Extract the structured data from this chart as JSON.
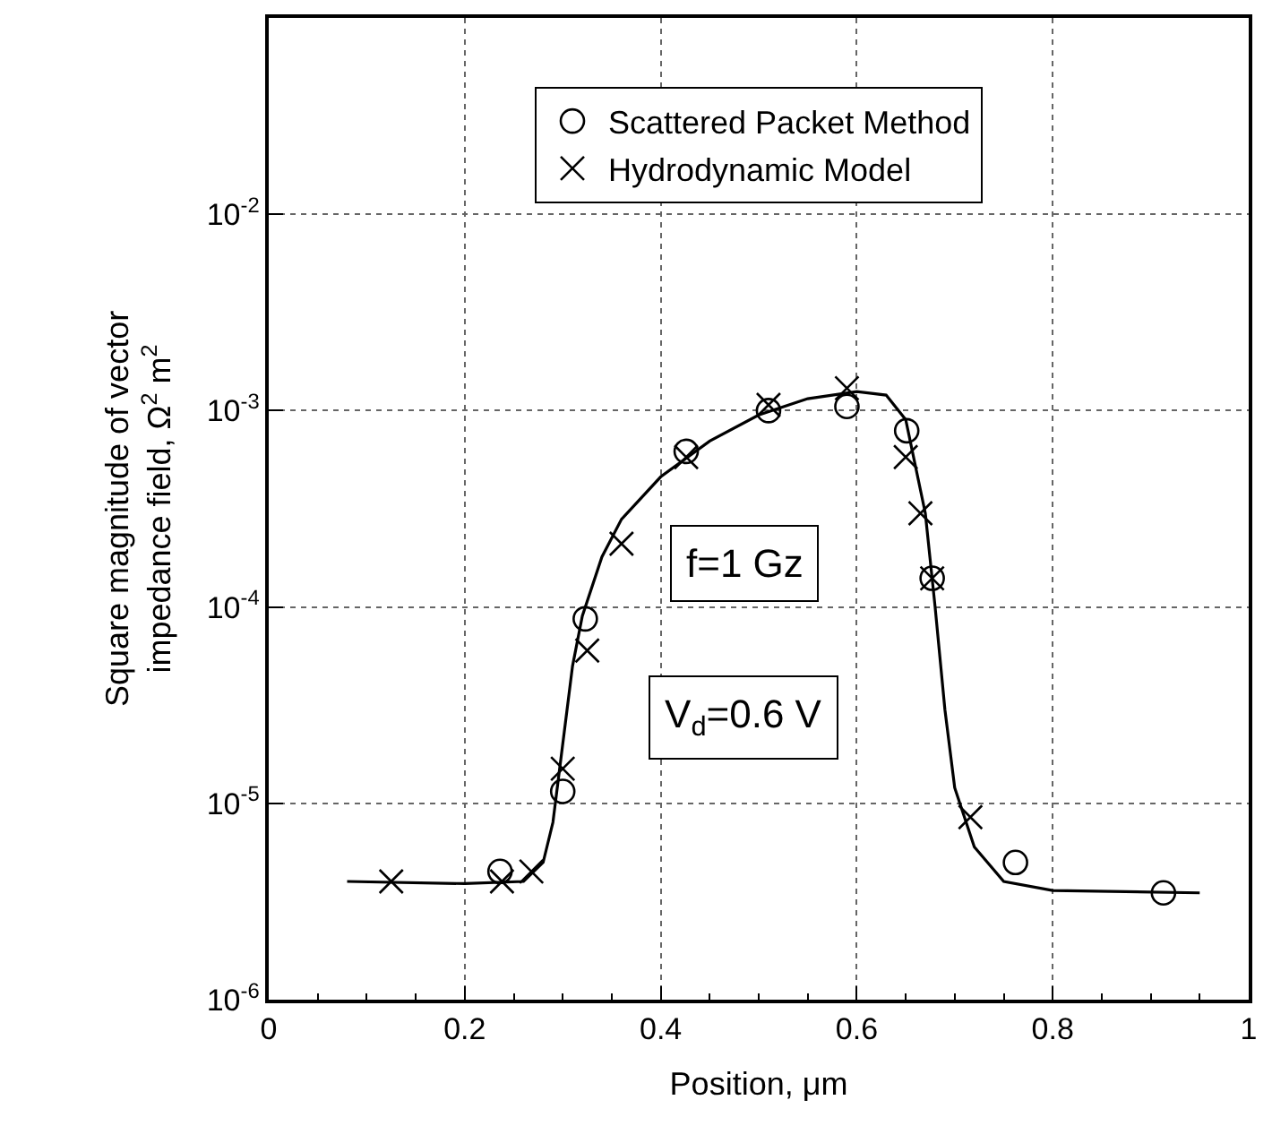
{
  "chart_data": {
    "type": "scatter",
    "xlabel": "Position, μm",
    "ylabel": "Square magnitude of vector\nimpedance field, Ω$^{2}$ m$^{2}$",
    "xlim": [
      0,
      1
    ],
    "xticks": [
      0,
      0.2,
      0.4,
      0.6,
      0.8,
      1
    ],
    "ylim": [
      1e-06,
      0.1
    ],
    "yticks": [
      {
        "value": 1e-06,
        "label": "10$^{-6}$"
      },
      {
        "value": 1e-05,
        "label": "10$^{-5}$"
      },
      {
        "value": 0.0001,
        "label": "10$^{-4}$"
      },
      {
        "value": 0.001,
        "label": "10$^{-3}$"
      },
      {
        "value": 0.01,
        "label": "10$^{-2}$"
      }
    ],
    "log": "y",
    "grid": true,
    "legend": "top",
    "annotations": [
      "f=1 Gz",
      "V$_{d}$=0.6 V"
    ],
    "series": [
      {
        "type": "line",
        "color": "#000000",
        "marker": "none",
        "line_style": "solid",
        "x": [
          0.08,
          0.2,
          0.26,
          0.28,
          0.29,
          0.3,
          0.31,
          0.32,
          0.34,
          0.36,
          0.4,
          0.45,
          0.5,
          0.55,
          0.6,
          0.63,
          0.65,
          0.67,
          0.68,
          0.69,
          0.7,
          0.72,
          0.75,
          0.8,
          0.95
        ],
        "values": [
          4e-06,
          3.9e-06,
          4e-06,
          5e-06,
          8e-06,
          2e-05,
          5e-05,
          9e-05,
          0.00018,
          0.00028,
          0.00046,
          0.0007,
          0.00095,
          0.00115,
          0.00125,
          0.0012,
          0.0009,
          0.0003,
          0.0001,
          3e-05,
          1.2e-05,
          6e-06,
          4e-06,
          3.6e-06,
          3.5e-06
        ]
      },
      {
        "name": "Scattered Packet Method",
        "color": "#000000",
        "marker": "circle",
        "x": [
          0.236,
          0.3,
          0.323,
          0.426,
          0.51,
          0.59,
          0.651,
          0.677,
          0.762,
          0.913
        ],
        "values": [
          4.5e-06,
          1.15e-05,
          8.7e-05,
          0.00062,
          0.001,
          0.00105,
          0.00079,
          0.00014,
          5e-06,
          3.5e-06
        ]
      },
      {
        "name": "Hydrodynamic Model",
        "color": "#000000",
        "marker": "cross",
        "x": [
          0.125,
          0.238,
          0.268,
          0.3,
          0.325,
          0.36,
          0.426,
          0.51,
          0.59,
          0.65,
          0.665,
          0.677,
          0.716
        ],
        "values": [
          4e-06,
          4e-06,
          4.5e-06,
          1.5e-05,
          6e-05,
          0.00021,
          0.00058,
          0.00107,
          0.0013,
          0.00058,
          0.0003,
          0.00014,
          8.5e-06
        ]
      }
    ]
  }
}
